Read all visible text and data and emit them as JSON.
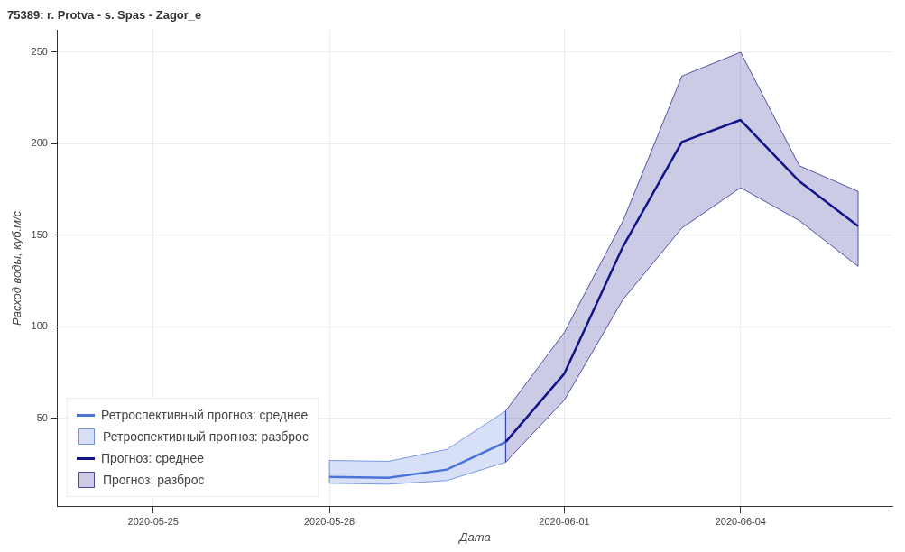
{
  "chart_data": {
    "type": "line",
    "title": "75389: r. Protva - s. Spas - Zagor_e",
    "xlabel": "Дата",
    "ylabel": "Расход воды, куб.м/с",
    "xlim": [
      "2020-05-23T09:00",
      "2020-06-06T14:00"
    ],
    "xticks": [
      "2020-05-25",
      "2020-05-28",
      "2020-06-01",
      "2020-06-04"
    ],
    "ylim": [
      2,
      262
    ],
    "yticks": [
      50,
      100,
      150,
      200,
      250
    ],
    "grid": true,
    "legend": "bottom left",
    "marker": "none",
    "line_style": "solid",
    "annotations": [
      "Ретроспективный прогноз: разброс",
      "Прогноз: разброс"
    ],
    "series": [
      {
        "name": "Ретроспективный прогноз: среднее",
        "type": "line",
        "color": "#4a74d8",
        "x": [
          "2020-05-28",
          "2020-05-29",
          "2020-05-30",
          "2020-05-31"
        ],
        "values": [
          18,
          17.5,
          22,
          37
        ],
        "lower": [
          14.5,
          14,
          16,
          26
        ],
        "upper": [
          27,
          26.5,
          33,
          54
        ]
      },
      {
        "name": "Прогноз: среднее",
        "type": "line",
        "color": "#13138a",
        "x": [
          "2020-05-31",
          "2020-06-01",
          "2020-06-02",
          "2020-06-03",
          "2020-06-04",
          "2020-06-05",
          "2020-06-06"
        ],
        "values": [
          37,
          74.5,
          144,
          201,
          213,
          179.5,
          155
        ],
        "lower": [
          26,
          60,
          115,
          154,
          176,
          158,
          133
        ],
        "upper": [
          54,
          97,
          158,
          237,
          250,
          188,
          174
        ]
      }
    ]
  }
}
